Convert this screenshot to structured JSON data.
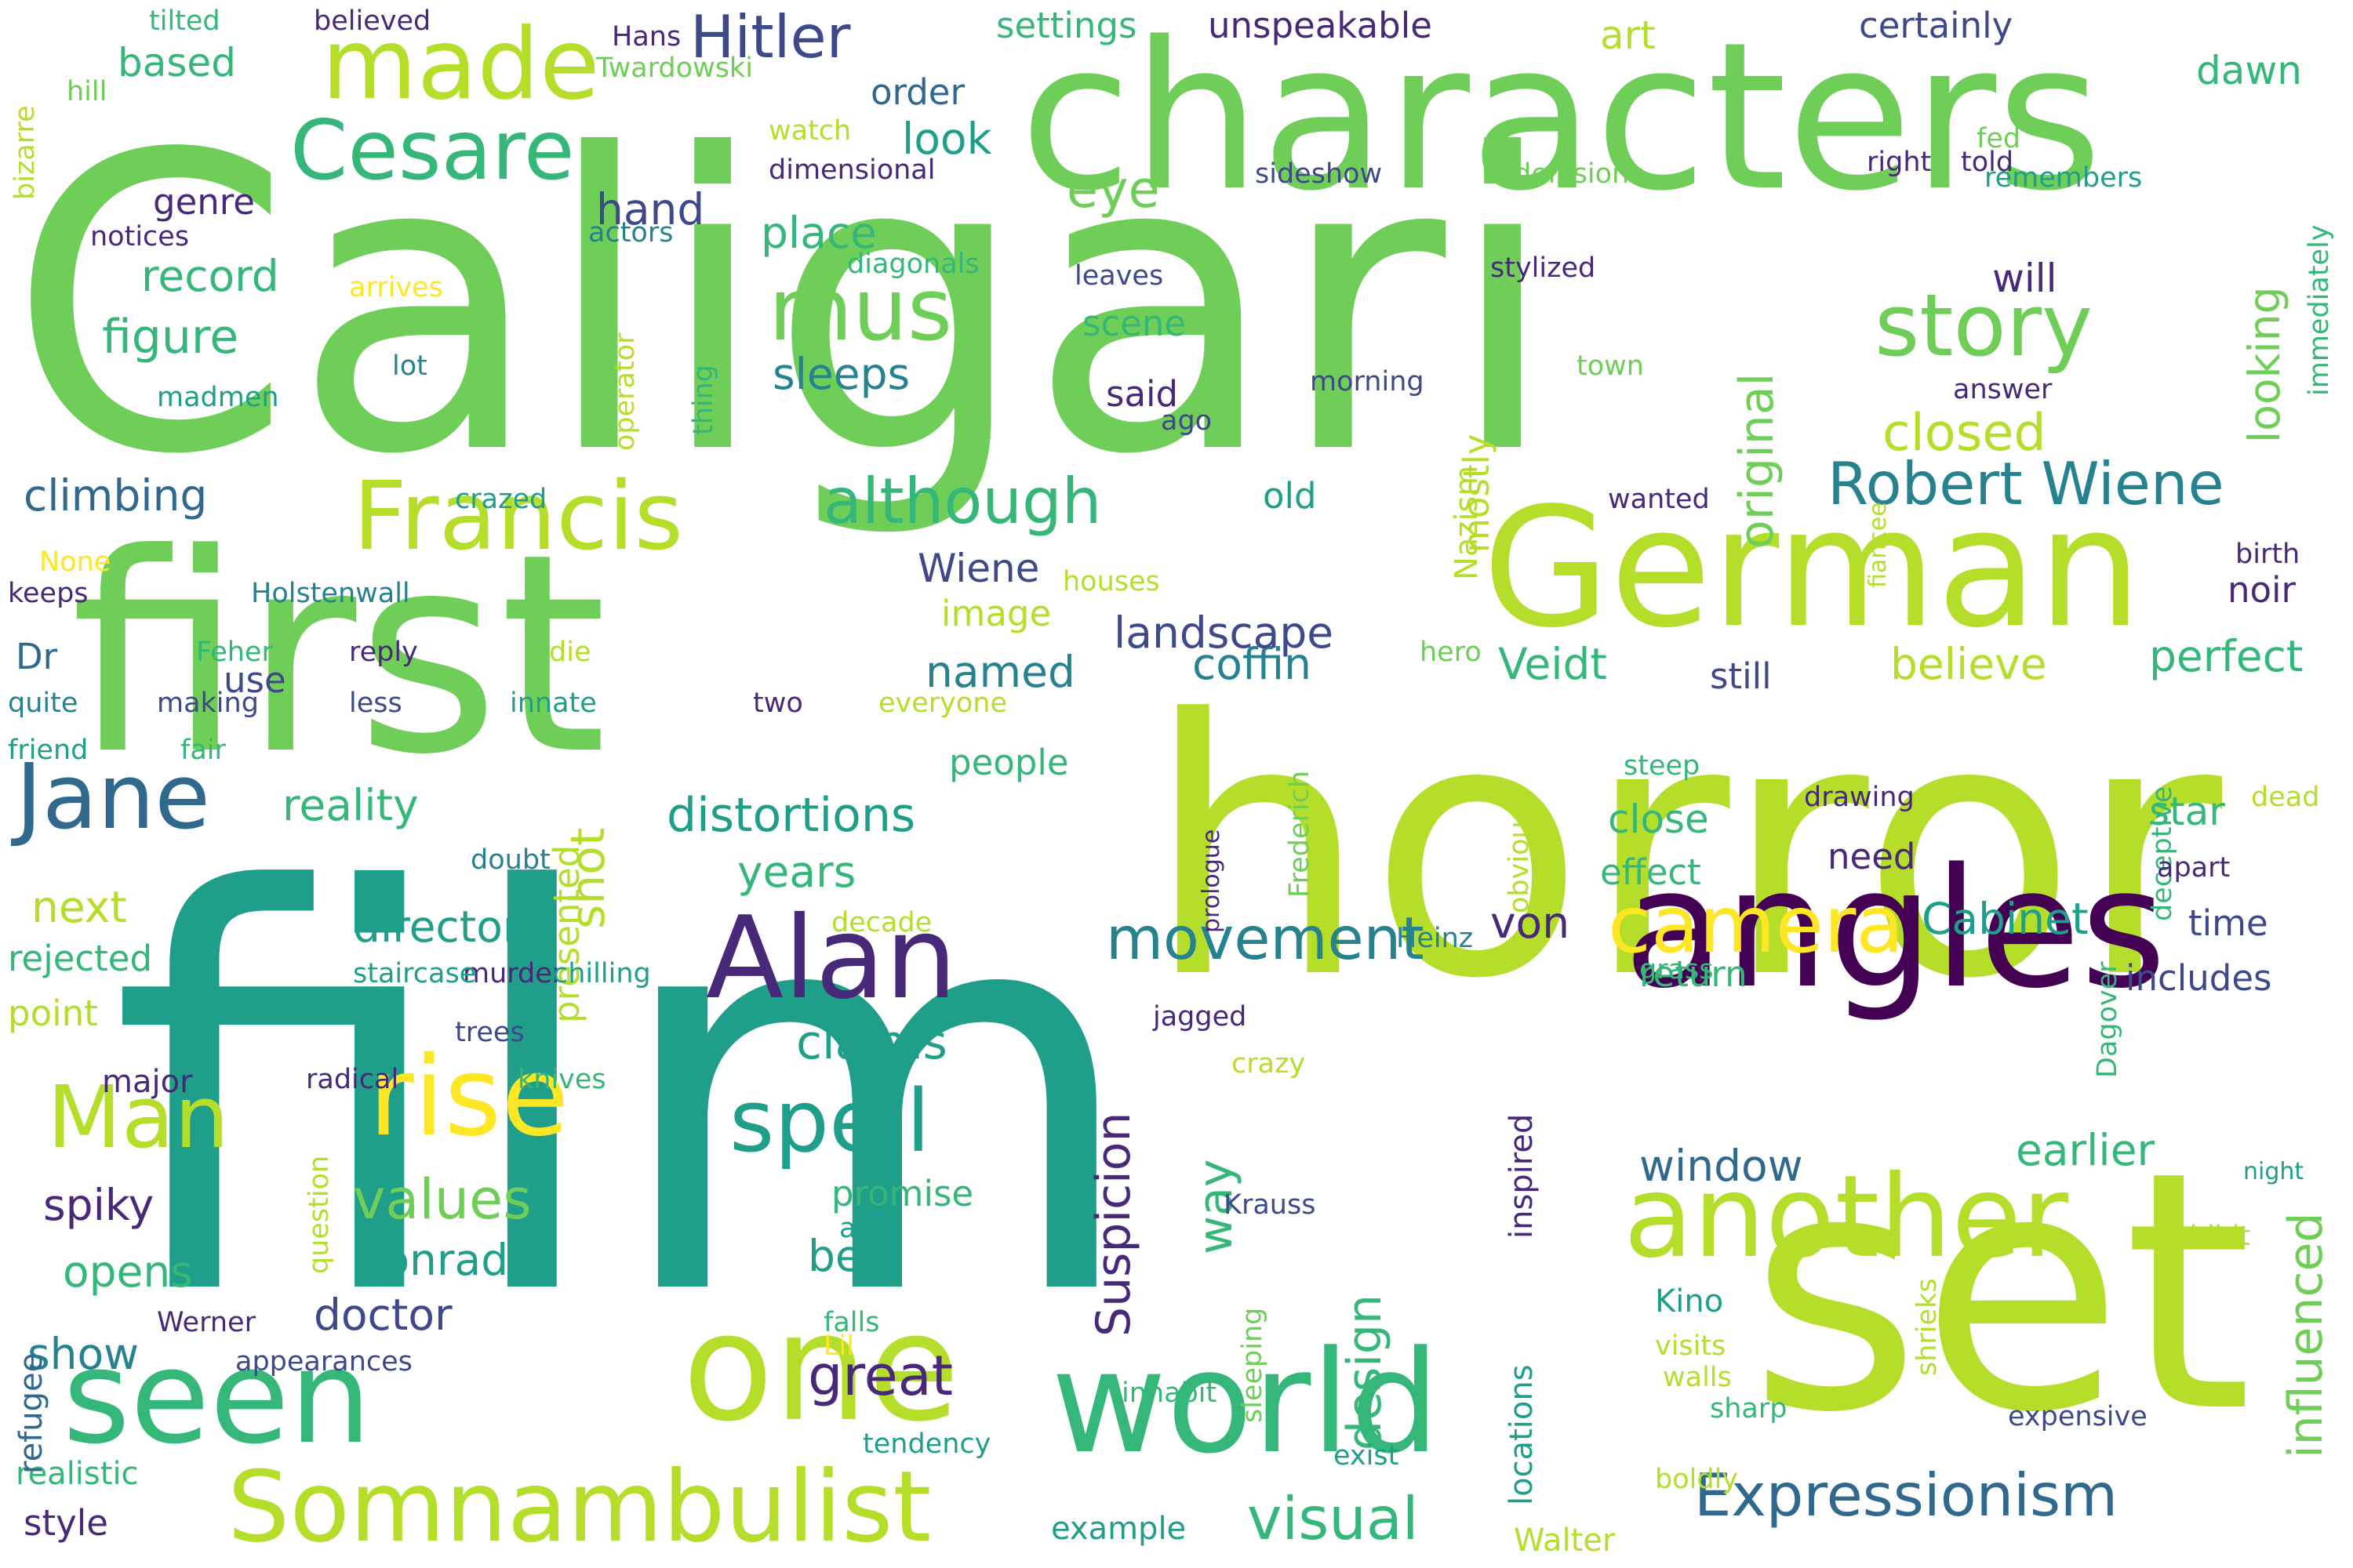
{
  "palette": {
    "dark_purple": "#440154",
    "indigo": "#482878",
    "slate_blue": "#3e4989",
    "steel_blue": "#31688e",
    "teal_blue": "#26828e",
    "teal": "#1f9e89",
    "green_teal": "#35b779",
    "green": "#6ece58",
    "lime": "#b5de2b",
    "yellow": "#fde725"
  },
  "words": [
    "Caligari",
    "film",
    "horror",
    "first",
    "characters",
    "angles",
    "set",
    "German",
    "world",
    "one",
    "seen",
    "Somnambulist",
    "another",
    "Alan",
    "Francis",
    "rise",
    "made",
    "Cesare",
    "Jane",
    "camera",
    "story",
    "spell",
    "must",
    "Man",
    "Hitler",
    "Robert Wiene",
    "Expressionism",
    "visual",
    "although",
    "values",
    "movement",
    "great",
    "original",
    "design",
    "way",
    "Suspicion",
    "influenced",
    "closed",
    "eye",
    "distortions",
    "claims",
    "looking",
    "director",
    "Cabinet",
    "shot",
    "figure",
    "record",
    "climbing",
    "place",
    "sleeps",
    "look",
    "hand",
    "earlier",
    "window",
    "coffin",
    "landscape",
    "years",
    "named",
    "doctor",
    "Conrad",
    "spiky",
    "show",
    "opens",
    "reality",
    "next",
    "Veidt",
    "believe",
    "perfect",
    "von",
    "best",
    "promise",
    "presented",
    "mostly",
    "will",
    "dawn",
    "art",
    "order",
    "settings",
    "unspeakable",
    "certainly",
    "based",
    "genre",
    "Dr",
    "Wiene",
    "effect",
    "close",
    "star",
    "time",
    "includes",
    "return",
    "noir",
    "need",
    "people",
    "image",
    "use",
    "old",
    "said",
    "scene",
    "leaves",
    "stylized",
    "Nazism",
    "immediately",
    "Walter",
    "inspired",
    "locations",
    "major",
    "point",
    "rejected",
    "style",
    "realistic",
    "refugee",
    "example",
    "exist",
    "Kino",
    "sharp",
    "walls",
    "visits",
    "night",
    "exhibit",
    "expensive",
    "still",
    "steep",
    "drawing",
    "dead",
    "deceptive",
    "apart",
    "Frederich",
    "prologue",
    "obviously",
    "Heinz",
    "grass",
    "Dagover",
    "crazy",
    "radical",
    "knives",
    "Krauss",
    "jagged",
    "trees",
    "murder",
    "staircase",
    "chilling",
    "decade",
    "doubt",
    "two",
    "everyone",
    "innate",
    "less",
    "making",
    "friend",
    "fair",
    "quite",
    "reply",
    "die",
    "hero",
    "Feher",
    "Holstenwall",
    "keeps",
    "None",
    "houses",
    "birth",
    "fiancee",
    "wanted",
    "crazed",
    "town",
    "answer",
    "ago",
    "morning",
    "thing",
    "operator",
    "lot",
    "madmen",
    "arrives",
    "actors",
    "notices",
    "diagonals",
    "dimensional",
    "watch",
    "sideshow",
    "delusions",
    "right",
    "told",
    "remembers",
    "fed",
    "Twardowski",
    "Hans",
    "believed",
    "tilted",
    "hill",
    "bizarre",
    "asks",
    "question",
    "sleeping",
    "falls",
    "inhabit",
    "Lil",
    "tendency",
    "appearances",
    "Werner",
    "shrieks",
    "boldly"
  ]
}
